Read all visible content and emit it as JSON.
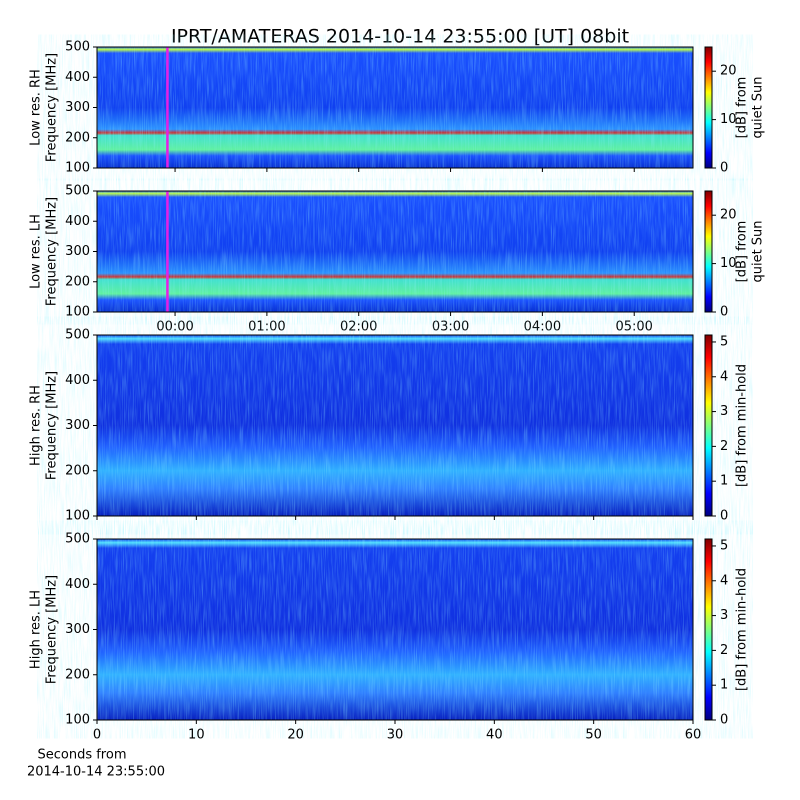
{
  "title": "IPRT/AMATERAS 2014-10-14 23:55:00 [UT]   08bit",
  "xlabel": [
    "Seconds from",
    "2014-10-14 23:55:00"
  ],
  "chart_data": [
    {
      "type": "spectrogram",
      "ylabel": [
        "Low res. RH",
        "Frequency [MHz]"
      ],
      "ylim": [
        100,
        500
      ],
      "yticks": [
        100,
        200,
        300,
        400,
        500
      ],
      "xlim": [
        -0.85,
        5.64
      ],
      "xticks": [
        {
          "value": 0,
          "label": "00:00"
        },
        {
          "value": 1,
          "label": "01:00"
        },
        {
          "value": 2,
          "label": "02:00"
        },
        {
          "value": 3,
          "label": "03:00"
        },
        {
          "value": 4,
          "label": "04:00"
        },
        {
          "value": 5,
          "label": "05:00"
        }
      ],
      "show_xtick_labels": false,
      "marker_x": -0.083,
      "marker_color": "#e61fe6",
      "colorbar_label": [
        "[dB] from",
        "quiet Sun"
      ],
      "clim": [
        0,
        25
      ],
      "cticks": [
        0,
        10,
        20
      ]
    },
    {
      "type": "spectrogram",
      "ylabel": [
        "Low res. LH",
        "Frequency [MHz]"
      ],
      "ylim": [
        100,
        500
      ],
      "yticks": [
        100,
        200,
        300,
        400,
        500
      ],
      "xlim": [
        -0.85,
        5.64
      ],
      "xticks": [
        {
          "value": 0,
          "label": "00:00"
        },
        {
          "value": 1,
          "label": "01:00"
        },
        {
          "value": 2,
          "label": "02:00"
        },
        {
          "value": 3,
          "label": "03:00"
        },
        {
          "value": 4,
          "label": "04:00"
        },
        {
          "value": 5,
          "label": "05:00"
        }
      ],
      "show_xtick_labels": true,
      "marker_x": -0.083,
      "marker_color": "#e61fe6",
      "colorbar_label": [
        "[dB] from",
        "quiet Sun"
      ],
      "clim": [
        0,
        25
      ],
      "cticks": [
        0,
        10,
        20
      ]
    },
    {
      "type": "spectrogram",
      "ylabel": [
        "High res. RH",
        "Frequency [MHz]"
      ],
      "ylim": [
        100,
        500
      ],
      "yticks": [
        100,
        200,
        300,
        400,
        500
      ],
      "xlim": [
        0,
        60
      ],
      "xticks": [
        0,
        10,
        20,
        30,
        40,
        50,
        60
      ],
      "show_xtick_labels": false,
      "colorbar_label": [
        "[dB] from min-hold"
      ],
      "clim": [
        0,
        5.2
      ],
      "cticks": [
        0,
        1,
        2,
        3,
        4,
        5
      ]
    },
    {
      "type": "spectrogram",
      "ylabel": [
        "High res. LH",
        "Frequency [MHz]"
      ],
      "ylim": [
        100,
        500
      ],
      "yticks": [
        100,
        200,
        300,
        400,
        500
      ],
      "xlim": [
        0,
        60
      ],
      "xticks": [
        0,
        10,
        20,
        30,
        40,
        50,
        60
      ],
      "show_xtick_labels": true,
      "colorbar_label": [
        "[dB] from min-hold"
      ],
      "clim": [
        0,
        5.2
      ],
      "cticks": [
        0,
        1,
        2,
        3,
        4,
        5
      ]
    }
  ]
}
